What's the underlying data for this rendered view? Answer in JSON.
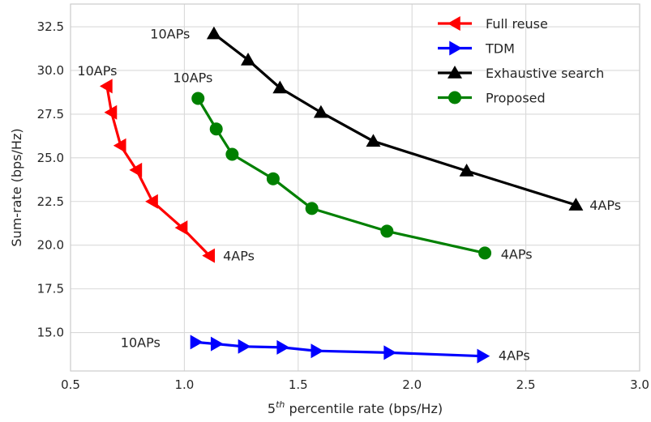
{
  "chart_data": {
    "type": "line",
    "xlabel_base": "5",
    "xlabel_sup": "th",
    "xlabel_rest": " percentile rate (bps/Hz)",
    "ylabel": "Sum-rate (bps/Hz)",
    "xlim": [
      0.5,
      3.0
    ],
    "ylim": [
      12.8,
      33.8
    ],
    "grid": true,
    "legend_position": "top-right",
    "xticks": [
      0.5,
      1.0,
      1.5,
      2.0,
      2.5,
      3.0
    ],
    "xtick_labels": [
      "0.5",
      "1.0",
      "1.5",
      "2.0",
      "2.5",
      "3.0"
    ],
    "yticks": [
      15.0,
      17.5,
      20.0,
      22.5,
      25.0,
      27.5,
      30.0,
      32.5
    ],
    "ytick_labels": [
      "15.0",
      "17.5",
      "20.0",
      "22.5",
      "25.0",
      "27.5",
      "30.0",
      "32.5"
    ],
    "series": [
      {
        "name": "Full reuse",
        "color": "#ff0000",
        "marker": "triangle-left",
        "points": [
          [
            0.66,
            29.1
          ],
          [
            0.68,
            27.6
          ],
          [
            0.72,
            25.7
          ],
          [
            0.79,
            24.3
          ],
          [
            0.86,
            22.5
          ],
          [
            0.99,
            21.0
          ],
          [
            1.11,
            19.4
          ]
        ]
      },
      {
        "name": "TDM",
        "color": "#0000ff",
        "marker": "triangle-right",
        "points": [
          [
            1.05,
            14.45
          ],
          [
            1.14,
            14.35
          ],
          [
            1.26,
            14.2
          ],
          [
            1.43,
            14.15
          ],
          [
            1.58,
            13.95
          ],
          [
            1.9,
            13.85
          ],
          [
            2.31,
            13.65
          ]
        ]
      },
      {
        "name": "Exhaustive search",
        "color": "#000000",
        "marker": "triangle-up",
        "points": [
          [
            1.13,
            32.1
          ],
          [
            1.28,
            30.6
          ],
          [
            1.42,
            29.0
          ],
          [
            1.6,
            27.6
          ],
          [
            1.83,
            25.95
          ],
          [
            2.24,
            24.25
          ],
          [
            2.72,
            22.3
          ]
        ]
      },
      {
        "name": "Proposed",
        "color": "#008000",
        "marker": "circle",
        "points": [
          [
            1.06,
            28.4
          ],
          [
            1.14,
            26.65
          ],
          [
            1.21,
            25.2
          ],
          [
            1.39,
            23.8
          ],
          [
            1.56,
            22.1
          ],
          [
            1.89,
            20.8
          ],
          [
            2.32,
            19.55
          ]
        ]
      }
    ],
    "annotations": [
      {
        "text": "10APs",
        "x": 0.53,
        "y": 30.0
      },
      {
        "text": "4APs",
        "x": 1.17,
        "y": 19.4
      },
      {
        "text": "10APs",
        "x": 0.72,
        "y": 14.45
      },
      {
        "text": "4APs",
        "x": 2.38,
        "y": 13.7
      },
      {
        "text": "10APs",
        "x": 0.85,
        "y": 32.1
      },
      {
        "text": "4APs",
        "x": 2.78,
        "y": 22.3
      },
      {
        "text": "10APs",
        "x": 0.95,
        "y": 29.6
      },
      {
        "text": "4APs",
        "x": 2.39,
        "y": 19.5
      }
    ]
  }
}
